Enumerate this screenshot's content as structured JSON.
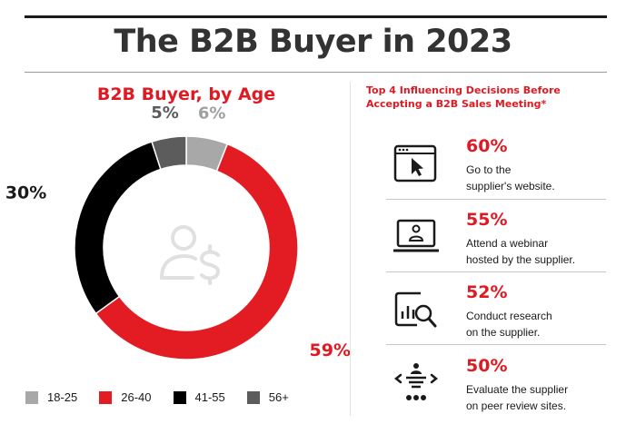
{
  "title": "The B2B Buyer in 2023",
  "chart_data": {
    "type": "pie",
    "title": "B2B Buyer, by Age",
    "categories": [
      "18-25",
      "26-40",
      "41-55",
      "56+"
    ],
    "values": [
      6,
      59,
      30,
      5
    ],
    "value_labels": [
      "6%",
      "59%",
      "30%",
      "5%"
    ],
    "colors": [
      "#a8a8a8",
      "#e31b23",
      "#000000",
      "#5c5c5c"
    ],
    "donut": true,
    "center_icon": "user-dollar-icon",
    "legend_position": "bottom"
  },
  "influencers": {
    "title_line1": "Top 4 Influencing Decisions Before",
    "title_line2": "Accepting a B2B Sales Meeting*",
    "items": [
      {
        "pct": "60%",
        "line1": "Go to the",
        "line2": "supplier's website.",
        "icon": "website-cursor-icon"
      },
      {
        "pct": "55%",
        "line1": "Attend a webinar",
        "line2": "hosted by the supplier.",
        "icon": "webinar-laptop-icon"
      },
      {
        "pct": "52%",
        "line1": "Conduct research",
        "line2": "on the supplier.",
        "icon": "research-chart-magnifier-icon"
      },
      {
        "pct": "50%",
        "line1": "Evaluate the supplier",
        "line2": "on peer review sites.",
        "icon": "peer-review-icon"
      }
    ]
  }
}
